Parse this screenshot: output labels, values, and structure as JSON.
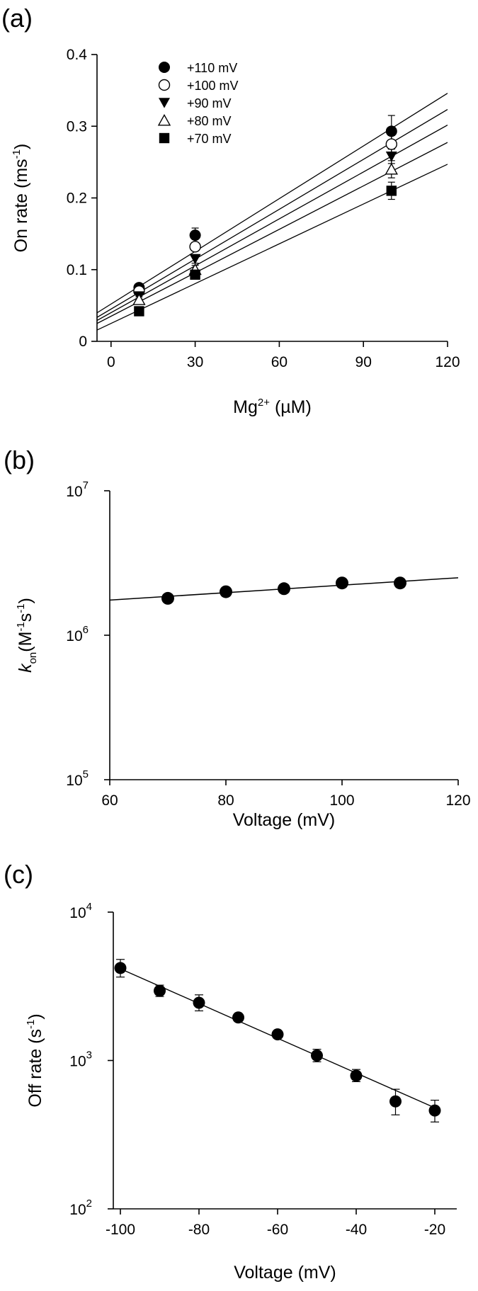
{
  "panel_labels": [
    "(a)",
    "(b)",
    "(c)"
  ],
  "chart_data": [
    {
      "type": "scatter",
      "panel": "(a)",
      "xlabel": "Mg2+ (µM)",
      "xlabel_parts": {
        "base": "Mg",
        "sup": "2+",
        "rest": " (µM)"
      },
      "ylabel": "On rate (ms-1)",
      "ylabel_parts": {
        "base": "On rate (ms",
        "sup": "-1",
        "rest": ")"
      },
      "xlim": [
        -5,
        120
      ],
      "ylim": [
        0,
        0.4
      ],
      "xticks": [
        0,
        30,
        60,
        90,
        120
      ],
      "yticks": [
        0,
        0.1,
        0.2,
        0.3,
        0.4
      ],
      "ytick_labels": [
        "0",
        "0.1",
        "0.2",
        "0.3",
        "0.4"
      ],
      "x": [
        10,
        30,
        100
      ],
      "fit_lines": true,
      "legend_position": "top-left",
      "series": [
        {
          "name": "+110 mV",
          "marker": "filled-circle",
          "values": [
            0.075,
            0.148,
            0.293
          ],
          "errors": [
            0.005,
            0.01,
            0.022
          ],
          "fit": [
            0.052,
            0.00245
          ]
        },
        {
          "name": "+100 mV",
          "marker": "open-circle",
          "values": [
            0.07,
            0.132,
            0.275
          ],
          "errors": [
            0.004,
            0.006,
            0.012
          ],
          "fit": [
            0.045,
            0.00232
          ]
        },
        {
          "name": "+90 mV",
          "marker": "filled-triangle-down",
          "values": [
            0.063,
            0.115,
            0.258
          ],
          "errors": [
            0.004,
            0.006,
            0.01
          ],
          "fit": [
            0.04,
            0.00218
          ]
        },
        {
          "name": "+80 mV",
          "marker": "open-triangle-up",
          "values": [
            0.058,
            0.1,
            0.24
          ],
          "errors": [
            0.004,
            0.006,
            0.012
          ],
          "fit": [
            0.035,
            0.00202
          ]
        },
        {
          "name": "+70 mV",
          "marker": "filled-square",
          "values": [
            0.042,
            0.093,
            0.21
          ],
          "errors": [
            0.003,
            0.006,
            0.012
          ],
          "fit": [
            0.025,
            0.00185
          ]
        }
      ]
    },
    {
      "type": "scatter",
      "panel": "(b)",
      "xlabel": "Voltage (mV)",
      "ylabel": "kon(M-1s-1)",
      "ylabel_parts": {
        "k": "k",
        "sub": "on",
        "m": "(M",
        "sup1": "-1",
        "s": "s",
        "sup2": "-1",
        "close": ")"
      },
      "xlim": [
        60,
        120
      ],
      "ylim": [
        100000,
        10000000
      ],
      "y_scale": "log",
      "xticks": [
        60,
        80,
        100,
        120
      ],
      "yticks": [
        100000,
        1000000,
        10000000
      ],
      "ytick_labels": [
        {
          "base": "10",
          "exp": "5"
        },
        {
          "base": "10",
          "exp": "6"
        },
        {
          "base": "10",
          "exp": "7"
        }
      ],
      "x": [
        70,
        80,
        90,
        100,
        110
      ],
      "values": [
        1800000,
        2000000,
        2100000,
        2300000,
        2300000
      ],
      "fit_line": [
        [
          60,
          1750000
        ],
        [
          120,
          2500000
        ]
      ]
    },
    {
      "type": "scatter",
      "panel": "(c)",
      "xlabel": "Voltage (mV)",
      "ylabel": "Off rate (s-1)",
      "ylabel_parts": {
        "base": "Off rate (s",
        "sup": "-1",
        "rest": ")"
      },
      "xlim": [
        -100,
        -20
      ],
      "ylim": [
        100,
        10000
      ],
      "y_scale": "log",
      "xticks": [
        -100,
        -80,
        -60,
        -40,
        -20
      ],
      "yticks": [
        100,
        1000,
        10000
      ],
      "ytick_labels": [
        {
          "base": "10",
          "exp": "2"
        },
        {
          "base": "10",
          "exp": "3"
        },
        {
          "base": "10",
          "exp": "4"
        }
      ],
      "x": [
        -100,
        -90,
        -80,
        -70,
        -60,
        -50,
        -40,
        -30,
        -20
      ],
      "values": [
        4200,
        2950,
        2450,
        1950,
        1500,
        1080,
        790,
        530,
        460
      ],
      "errors_up": [
        600,
        270,
        320,
        100,
        90,
        110,
        80,
        110,
        80
      ],
      "errors_down": [
        550,
        250,
        290,
        90,
        80,
        100,
        70,
        100,
        75
      ],
      "fit_line": [
        [
          -100,
          4150
        ],
        [
          -20,
          480
        ]
      ]
    }
  ]
}
